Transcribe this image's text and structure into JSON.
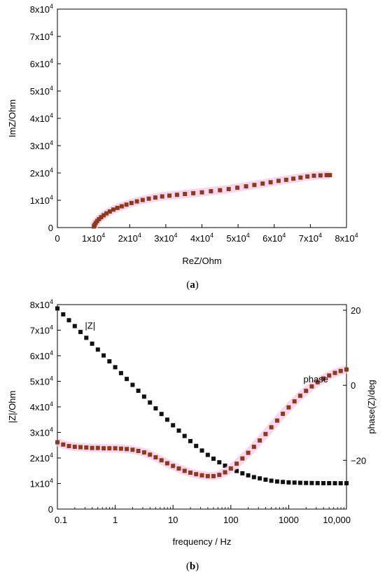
{
  "chart_data": [
    {
      "type": "scatter",
      "caption": "a",
      "xlabel": "ReZ/Ohm",
      "ylabel": "ImZ/Ohm",
      "xlim": [
        0,
        80000
      ],
      "ylim": [
        0,
        80000
      ],
      "x_ticks": [
        {
          "v": 0,
          "base": "0",
          "exp": ""
        },
        {
          "v": 10000,
          "base": "1x10",
          "exp": "4"
        },
        {
          "v": 20000,
          "base": "2x10",
          "exp": "4"
        },
        {
          "v": 30000,
          "base": "3x10",
          "exp": "4"
        },
        {
          "v": 40000,
          "base": "4x10",
          "exp": "4"
        },
        {
          "v": 50000,
          "base": "5x10",
          "exp": "4"
        },
        {
          "v": 60000,
          "base": "6x10",
          "exp": "4"
        },
        {
          "v": 70000,
          "base": "7x10",
          "exp": "4"
        },
        {
          "v": 80000,
          "base": "8x10",
          "exp": "4"
        }
      ],
      "y_ticks": [
        {
          "v": 0,
          "base": "0",
          "exp": ""
        },
        {
          "v": 10000,
          "base": "1x10",
          "exp": "4"
        },
        {
          "v": 20000,
          "base": "2x10",
          "exp": "4"
        },
        {
          "v": 30000,
          "base": "3x10",
          "exp": "4"
        },
        {
          "v": 40000,
          "base": "4x10",
          "exp": "4"
        },
        {
          "v": 50000,
          "base": "5x10",
          "exp": "4"
        },
        {
          "v": 60000,
          "base": "6x10",
          "exp": "4"
        },
        {
          "v": 70000,
          "base": "7x10",
          "exp": "4"
        },
        {
          "v": 80000,
          "base": "8x10",
          "exp": "4"
        }
      ],
      "series": [
        {
          "color": "#8b3a1a",
          "x": [
            10100,
            10300,
            10600,
            11000,
            11500,
            12100,
            12800,
            13600,
            14500,
            15500,
            16600,
            17800,
            19100,
            20500,
            22000,
            23600,
            25300,
            27100,
            29000,
            31000,
            33100,
            35300,
            37600,
            40000,
            42500,
            45000,
            47400,
            49800,
            52200,
            54500,
            56800,
            59000,
            61200,
            63300,
            65300,
            67300,
            69200,
            71000,
            72800,
            74500,
            75400
          ],
          "y": [
            400,
            1000,
            1700,
            2400,
            3100,
            3800,
            4500,
            5200,
            5900,
            6600,
            7200,
            7800,
            8400,
            9000,
            9600,
            10100,
            10600,
            11000,
            11400,
            11700,
            12000,
            12300,
            12600,
            12900,
            13300,
            13700,
            14100,
            14600,
            15100,
            15600,
            16100,
            16600,
            17100,
            17500,
            17900,
            18300,
            18700,
            19000,
            19100,
            19200,
            19200
          ]
        }
      ]
    },
    {
      "type": "scatter",
      "caption": "b",
      "xlabel": "frequency / Hz",
      "ylabel": "|Z|/Ohm",
      "y2label": "phase(Z)/deg",
      "x_scale": "log",
      "xlim": [
        0.1,
        10000
      ],
      "ylim": [
        0,
        80000
      ],
      "y2lim": [
        -33,
        21.5
      ],
      "x_ticks": [
        {
          "v": 0.1,
          "label": "0.1"
        },
        {
          "v": 1,
          "label": "1"
        },
        {
          "v": 10,
          "label": "10"
        },
        {
          "v": 100,
          "label": "100"
        },
        {
          "v": 1000,
          "label": "1000"
        },
        {
          "v": 10000,
          "label": "10,000"
        }
      ],
      "y_ticks": [
        {
          "v": 0,
          "base": "0",
          "exp": ""
        },
        {
          "v": 10000,
          "base": "1x10",
          "exp": "4"
        },
        {
          "v": 20000,
          "base": "2x10",
          "exp": "4"
        },
        {
          "v": 30000,
          "base": "3x10",
          "exp": "4"
        },
        {
          "v": 40000,
          "base": "4x10",
          "exp": "4"
        },
        {
          "v": 50000,
          "base": "5x10",
          "exp": "4"
        },
        {
          "v": 60000,
          "base": "6x10",
          "exp": "4"
        },
        {
          "v": 70000,
          "base": "7x10",
          "exp": "4"
        },
        {
          "v": 80000,
          "base": "8x10",
          "exp": "4"
        }
      ],
      "y2_ticks": [
        {
          "v": 20,
          "label": "20"
        },
        {
          "v": 0,
          "label": "0"
        },
        {
          "v": -20,
          "label": "−20"
        }
      ],
      "series": [
        {
          "name": "|Z|",
          "axis": "left",
          "color": "#111111",
          "x": [
            0.1,
            0.1259,
            0.1585,
            0.1995,
            0.2512,
            0.3162,
            0.3981,
            0.5012,
            0.631,
            0.7943,
            1,
            1.259,
            1.585,
            1.995,
            2.512,
            3.162,
            3.981,
            5.012,
            6.31,
            7.943,
            10,
            12.59,
            15.85,
            19.95,
            25.12,
            31.62,
            39.81,
            50.12,
            63.1,
            79.43,
            100,
            125.9,
            158.5,
            199.5,
            251.2,
            316.2,
            398.1,
            501.2,
            631,
            794.3,
            1000,
            1259,
            1585,
            1995,
            2512,
            3162,
            3981,
            5012,
            6310,
            7943,
            10000
          ],
          "y": [
            78500,
            76200,
            73900,
            71600,
            69300,
            67000,
            64700,
            62400,
            60100,
            57800,
            55500,
            53200,
            50900,
            48600,
            46300,
            44000,
            41700,
            39400,
            37200,
            35000,
            32800,
            30700,
            28600,
            26600,
            24700,
            22900,
            21200,
            19700,
            18300,
            17000,
            15900,
            14900,
            14000,
            13200,
            12500,
            12000,
            11500,
            11100,
            10800,
            10600,
            10450,
            10350,
            10280,
            10230,
            10200,
            10170,
            10150,
            10130,
            10120,
            10110,
            10100
          ]
        },
        {
          "name": "phase",
          "axis": "right",
          "color": "#8b3a1a",
          "x": [
            0.1,
            0.1259,
            0.1585,
            0.1995,
            0.2512,
            0.3162,
            0.3981,
            0.5012,
            0.631,
            0.7943,
            1,
            1.259,
            1.585,
            1.995,
            2.512,
            3.162,
            3.981,
            5.012,
            6.31,
            7.943,
            10,
            12.59,
            15.85,
            19.95,
            25.12,
            31.62,
            39.81,
            50.12,
            63.1,
            79.43,
            100,
            125.9,
            158.5,
            199.5,
            251.2,
            316.2,
            398.1,
            501.2,
            631,
            794.3,
            1000,
            1259,
            1585,
            1995,
            2512,
            3162,
            3981,
            5012,
            6310,
            7943,
            10000
          ],
          "y": [
            -15.2,
            -15.8,
            -16.2,
            -16.4,
            -16.5,
            -16.6,
            -16.7,
            -16.7,
            -16.8,
            -16.8,
            -16.8,
            -16.9,
            -17.0,
            -17.2,
            -17.5,
            -17.9,
            -18.5,
            -19.2,
            -20.0,
            -20.8,
            -21.5,
            -22.2,
            -22.8,
            -23.3,
            -23.7,
            -24.0,
            -24.2,
            -24.2,
            -23.9,
            -23.2,
            -22.2,
            -20.9,
            -19.5,
            -18.0,
            -16.4,
            -14.7,
            -13.0,
            -11.2,
            -9.4,
            -7.6,
            -5.9,
            -4.3,
            -2.8,
            -1.5,
            -0.3,
            0.8,
            1.8,
            2.6,
            3.3,
            3.8,
            4.2
          ]
        }
      ],
      "annotations": [
        {
          "text": "|Z|",
          "x": 0.3,
          "y": 70500,
          "axis": "left"
        },
        {
          "text": "phase",
          "x": 1800,
          "y": 0.8,
          "axis": "right"
        }
      ]
    }
  ]
}
